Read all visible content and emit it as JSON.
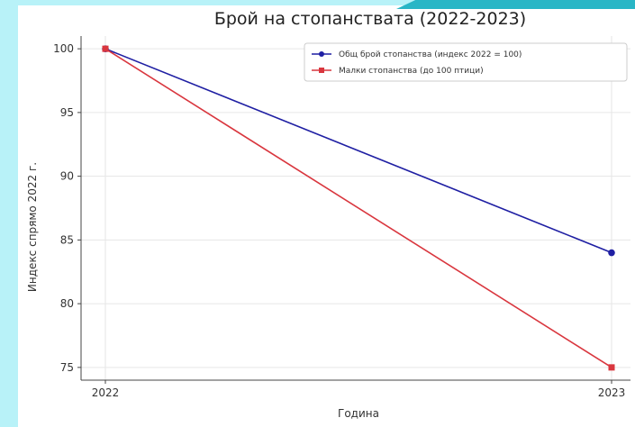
{
  "chart_data": {
    "type": "line",
    "title": "Брой на стопанствата (2022-2023)",
    "xlabel": "Година",
    "ylabel": "Индекс спрямо 2022 г.",
    "x": [
      "2022",
      "2023"
    ],
    "ylim": [
      74,
      101
    ],
    "yticks": [
      75,
      80,
      85,
      90,
      95,
      100
    ],
    "grid": true,
    "legend_position": "top-right",
    "series": [
      {
        "name": "Общ брой стопанства (индекс 2022 = 100)",
        "values": [
          100,
          84
        ],
        "color": "#1f1fa3",
        "marker": "circle"
      },
      {
        "name": "Малки стопанства (до 100 птици)",
        "values": [
          100,
          75
        ],
        "color": "#d9363e",
        "marker": "square"
      }
    ]
  }
}
